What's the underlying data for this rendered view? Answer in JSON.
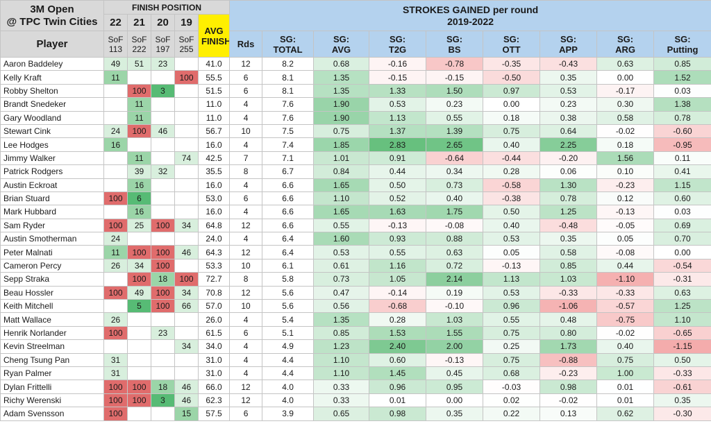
{
  "title_line1": "3M Open",
  "title_line2": "@ TPC Twin Cities",
  "finish_position_label": "FINISH POSITION",
  "strokes_gained_label": "STROKES GAINED per round",
  "years_label": "2019-2022",
  "player_header": "Player",
  "years": [
    {
      "year": "22",
      "sof_label": "SoF",
      "sof": "113"
    },
    {
      "year": "21",
      "sof_label": "SoF",
      "sof": "222"
    },
    {
      "year": "20",
      "sof_label": "SoF",
      "sof": "197"
    },
    {
      "year": "19",
      "sof_label": "SoF",
      "sof": "255"
    }
  ],
  "avg_finish_label_1": "AVG",
  "avg_finish_label_2": "FINISH",
  "rds_label": "Rds",
  "sg_columns": [
    {
      "l1": "SG:",
      "l2": "TOTAL"
    },
    {
      "l1": "SG:",
      "l2": "AVG"
    },
    {
      "l1": "SG:",
      "l2": "T2G"
    },
    {
      "l1": "SG:",
      "l2": "BS"
    },
    {
      "l1": "SG:",
      "l2": "OTT"
    },
    {
      "l1": "SG:",
      "l2": "APP"
    },
    {
      "l1": "SG:",
      "l2": "ARG"
    },
    {
      "l1": "SG:",
      "l2": "Putting"
    }
  ],
  "colors": {
    "header_gray": "#d9d9d9",
    "header_blue": "#b4d2ee",
    "avg_finish_yellow": "#ffef00",
    "finish_good": "#63be7b",
    "finish_bad": "#e06c6c"
  },
  "chart_data": {
    "type": "table",
    "columns": [
      "Player",
      "22",
      "21",
      "20",
      "19",
      "AVG FINISH",
      "Rds",
      "SG: TOTAL",
      "SG: AVG",
      "SG: T2G",
      "SG: BS",
      "SG: OTT",
      "SG: APP",
      "SG: ARG",
      "SG: Putting"
    ],
    "rows": [
      {
        "player": "Aaron Baddeley",
        "finish": [
          "49",
          "51",
          "23",
          ""
        ],
        "avg_finish": "41.0",
        "rds": "12",
        "sg_total": "8.2",
        "sg": [
          "0.68",
          "-0.16",
          "-0.78",
          "-0.35",
          "-0.43",
          "0.63",
          "0.85"
        ]
      },
      {
        "player": "Kelly Kraft",
        "finish": [
          "11",
          "",
          "",
          "100"
        ],
        "avg_finish": "55.5",
        "rds": "6",
        "sg_total": "8.1",
        "sg": [
          "1.35",
          "-0.15",
          "-0.15",
          "-0.50",
          "0.35",
          "0.00",
          "1.52"
        ]
      },
      {
        "player": "Robby Shelton",
        "finish": [
          "",
          "100",
          "3",
          ""
        ],
        "avg_finish": "51.5",
        "rds": "6",
        "sg_total": "8.1",
        "sg": [
          "1.35",
          "1.33",
          "1.50",
          "0.97",
          "0.53",
          "-0.17",
          "0.03"
        ]
      },
      {
        "player": "Brandt Snedeker",
        "finish": [
          "",
          "11",
          "",
          ""
        ],
        "avg_finish": "11.0",
        "rds": "4",
        "sg_total": "7.6",
        "sg": [
          "1.90",
          "0.53",
          "0.23",
          "0.00",
          "0.23",
          "0.30",
          "1.38"
        ]
      },
      {
        "player": "Gary Woodland",
        "finish": [
          "",
          "11",
          "",
          ""
        ],
        "avg_finish": "11.0",
        "rds": "4",
        "sg_total": "7.6",
        "sg": [
          "1.90",
          "1.13",
          "0.55",
          "0.18",
          "0.38",
          "0.58",
          "0.78"
        ]
      },
      {
        "player": "Stewart Cink",
        "finish": [
          "24",
          "100",
          "46",
          ""
        ],
        "avg_finish": "56.7",
        "rds": "10",
        "sg_total": "7.5",
        "sg": [
          "0.75",
          "1.37",
          "1.39",
          "0.75",
          "0.64",
          "-0.02",
          "-0.60"
        ]
      },
      {
        "player": "Lee Hodges",
        "finish": [
          "16",
          "",
          "",
          ""
        ],
        "avg_finish": "16.0",
        "rds": "4",
        "sg_total": "7.4",
        "sg": [
          "1.85",
          "2.83",
          "2.65",
          "0.40",
          "2.25",
          "0.18",
          "-0.95"
        ]
      },
      {
        "player": "Jimmy Walker",
        "finish": [
          "",
          "11",
          "",
          "74"
        ],
        "avg_finish": "42.5",
        "rds": "7",
        "sg_total": "7.1",
        "sg": [
          "1.01",
          "0.91",
          "-0.64",
          "-0.44",
          "-0.20",
          "1.56",
          "0.11"
        ]
      },
      {
        "player": "Patrick Rodgers",
        "finish": [
          "",
          "39",
          "32",
          ""
        ],
        "avg_finish": "35.5",
        "rds": "8",
        "sg_total": "6.7",
        "sg": [
          "0.84",
          "0.44",
          "0.34",
          "0.28",
          "0.06",
          "0.10",
          "0.41"
        ]
      },
      {
        "player": "Austin Eckroat",
        "finish": [
          "",
          "16",
          "",
          ""
        ],
        "avg_finish": "16.0",
        "rds": "4",
        "sg_total": "6.6",
        "sg": [
          "1.65",
          "0.50",
          "0.73",
          "-0.58",
          "1.30",
          "-0.23",
          "1.15"
        ]
      },
      {
        "player": "Brian Stuard",
        "finish": [
          "100",
          "6",
          "",
          ""
        ],
        "avg_finish": "53.0",
        "rds": "6",
        "sg_total": "6.6",
        "sg": [
          "1.10",
          "0.52",
          "0.40",
          "-0.38",
          "0.78",
          "0.12",
          "0.60"
        ]
      },
      {
        "player": "Mark Hubbard",
        "finish": [
          "",
          "16",
          "",
          ""
        ],
        "avg_finish": "16.0",
        "rds": "4",
        "sg_total": "6.6",
        "sg": [
          "1.65",
          "1.63",
          "1.75",
          "0.50",
          "1.25",
          "-0.13",
          "0.03"
        ]
      },
      {
        "player": "Sam Ryder",
        "finish": [
          "100",
          "25",
          "100",
          "34"
        ],
        "avg_finish": "64.8",
        "rds": "12",
        "sg_total": "6.6",
        "sg": [
          "0.55",
          "-0.13",
          "-0.08",
          "0.40",
          "-0.48",
          "-0.05",
          "0.69"
        ]
      },
      {
        "player": "Austin Smotherman",
        "finish": [
          "24",
          "",
          "",
          ""
        ],
        "avg_finish": "24.0",
        "rds": "4",
        "sg_total": "6.4",
        "sg": [
          "1.60",
          "0.93",
          "0.88",
          "0.53",
          "0.35",
          "0.05",
          "0.70"
        ]
      },
      {
        "player": "Peter Malnati",
        "finish": [
          "11",
          "100",
          "100",
          "46"
        ],
        "avg_finish": "64.3",
        "rds": "12",
        "sg_total": "6.4",
        "sg": [
          "0.53",
          "0.55",
          "0.63",
          "0.05",
          "0.58",
          "-0.08",
          "0.00"
        ]
      },
      {
        "player": "Cameron Percy",
        "finish": [
          "26",
          "34",
          "100",
          ""
        ],
        "avg_finish": "53.3",
        "rds": "10",
        "sg_total": "6.1",
        "sg": [
          "0.61",
          "1.16",
          "0.72",
          "-0.13",
          "0.85",
          "0.44",
          "-0.54"
        ]
      },
      {
        "player": "Sepp Straka",
        "finish": [
          "",
          "100",
          "18",
          "100"
        ],
        "avg_finish": "72.7",
        "rds": "8",
        "sg_total": "5.8",
        "sg": [
          "0.73",
          "1.05",
          "2.14",
          "1.13",
          "1.03",
          "-1.10",
          "-0.31"
        ]
      },
      {
        "player": "Beau Hossler",
        "finish": [
          "100",
          "49",
          "100",
          "34"
        ],
        "avg_finish": "70.8",
        "rds": "12",
        "sg_total": "5.6",
        "sg": [
          "0.47",
          "-0.14",
          "0.19",
          "0.53",
          "-0.33",
          "-0.33",
          "0.63"
        ]
      },
      {
        "player": "Keith Mitchell",
        "finish": [
          "",
          "5",
          "100",
          "66"
        ],
        "avg_finish": "57.0",
        "rds": "10",
        "sg_total": "5.6",
        "sg": [
          "0.56",
          "-0.68",
          "-0.10",
          "0.96",
          "-1.06",
          "-0.57",
          "1.25"
        ]
      },
      {
        "player": "Matt Wallace",
        "finish": [
          "26",
          "",
          "",
          ""
        ],
        "avg_finish": "26.0",
        "rds": "4",
        "sg_total": "5.4",
        "sg": [
          "1.35",
          "0.28",
          "1.03",
          "0.55",
          "0.48",
          "-0.75",
          "1.10"
        ]
      },
      {
        "player": "Henrik Norlander",
        "finish": [
          "100",
          "",
          "23",
          ""
        ],
        "avg_finish": "61.5",
        "rds": "6",
        "sg_total": "5.1",
        "sg": [
          "0.85",
          "1.53",
          "1.55",
          "0.75",
          "0.80",
          "-0.02",
          "-0.65"
        ]
      },
      {
        "player": "Kevin Streelman",
        "finish": [
          "",
          "",
          "",
          "34"
        ],
        "avg_finish": "34.0",
        "rds": "4",
        "sg_total": "4.9",
        "sg": [
          "1.23",
          "2.40",
          "2.00",
          "0.25",
          "1.73",
          "0.40",
          "-1.15"
        ]
      },
      {
        "player": "Cheng Tsung Pan",
        "finish": [
          "31",
          "",
          "",
          ""
        ],
        "avg_finish": "31.0",
        "rds": "4",
        "sg_total": "4.4",
        "sg": [
          "1.10",
          "0.60",
          "-0.13",
          "0.75",
          "-0.88",
          "0.75",
          "0.50"
        ]
      },
      {
        "player": "Ryan Palmer",
        "finish": [
          "31",
          "",
          "",
          ""
        ],
        "avg_finish": "31.0",
        "rds": "4",
        "sg_total": "4.4",
        "sg": [
          "1.10",
          "1.45",
          "0.45",
          "0.68",
          "-0.23",
          "1.00",
          "-0.33"
        ]
      },
      {
        "player": "Dylan Frittelli",
        "finish": [
          "100",
          "100",
          "18",
          "46"
        ],
        "avg_finish": "66.0",
        "rds": "12",
        "sg_total": "4.0",
        "sg": [
          "0.33",
          "0.96",
          "0.95",
          "-0.03",
          "0.98",
          "0.01",
          "-0.61"
        ]
      },
      {
        "player": "Richy Werenski",
        "finish": [
          "100",
          "100",
          "3",
          "46"
        ],
        "avg_finish": "62.3",
        "rds": "12",
        "sg_total": "4.0",
        "sg": [
          "0.33",
          "0.01",
          "0.00",
          "0.02",
          "-0.02",
          "0.01",
          "0.35"
        ]
      },
      {
        "player": "Adam Svensson",
        "finish": [
          "100",
          "",
          "",
          "15"
        ],
        "avg_finish": "57.5",
        "rds": "6",
        "sg_total": "3.9",
        "sg": [
          "0.65",
          "0.98",
          "0.35",
          "0.22",
          "0.13",
          "0.62",
          "-0.30"
        ]
      }
    ]
  }
}
